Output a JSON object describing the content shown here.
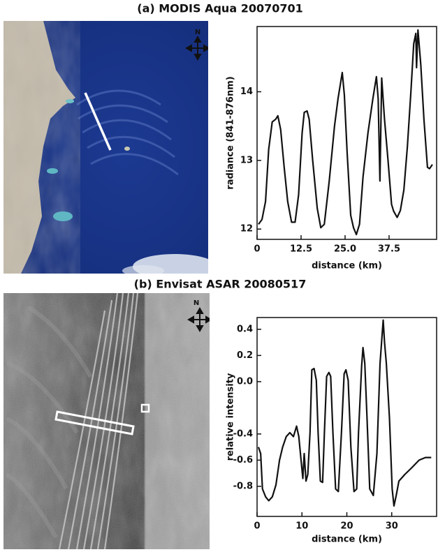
{
  "chart_data": [
    {
      "type": "line",
      "title": "(a) MODIS Aqua 20070701",
      "north_label": "N",
      "xlabel": "distance (km)",
      "ylabel": "radiance (841-876nm)",
      "xlim": [
        0,
        51
      ],
      "ylim": [
        11.85,
        14.95
      ],
      "xticks": [
        0,
        12.5,
        {
          "value": 25,
          "label": "25.0"
        },
        37.5
      ],
      "yticks": [
        12,
        13,
        14
      ],
      "series": [
        {
          "color": "#111111",
          "x": [
            0.4,
            1.4,
            2.4,
            3.3,
            4.3,
            5.3,
            5.9,
            6.7,
            7.7,
            8.7,
            9.8,
            10.8,
            11.8,
            12.8,
            13.4,
            14.2,
            14.8,
            15.8,
            17.1,
            18.1,
            19.1,
            20.5,
            22.0,
            23.0,
            24.2,
            24.8,
            25.6,
            26.6,
            27.4,
            28.2,
            29.1,
            30.1,
            31.5,
            32.9,
            33.9,
            34.4,
            34.9,
            35.4,
            36.2,
            37.2,
            38.2,
            38.8,
            39.8,
            40.7,
            41.7,
            42.7,
            43.7,
            44.5,
            45.1,
            45.3,
            45.7,
            46.5,
            47.4,
            48.4,
            49.0,
            49.8
          ],
          "values": [
            12.07,
            12.14,
            12.4,
            13.16,
            13.56,
            13.6,
            13.65,
            13.45,
            12.9,
            12.4,
            12.1,
            12.1,
            12.5,
            13.4,
            13.7,
            13.72,
            13.6,
            13.0,
            12.3,
            12.02,
            12.07,
            12.7,
            13.5,
            13.9,
            14.28,
            13.95,
            13.1,
            12.2,
            12.02,
            11.92,
            12.07,
            12.76,
            13.4,
            13.9,
            14.22,
            13.9,
            12.7,
            14.2,
            13.6,
            13.0,
            12.36,
            12.26,
            12.17,
            12.27,
            12.57,
            13.2,
            14.0,
            14.7,
            14.85,
            14.35,
            14.9,
            14.4,
            13.6,
            12.9,
            12.88,
            12.94
          ]
        }
      ]
    },
    {
      "type": "line",
      "title": "(b) Envisat ASAR 20080517",
      "north_label": "N",
      "xlabel": "distance (km)",
      "ylabel": "relative intensity",
      "xlim": [
        0,
        40
      ],
      "ylim": [
        -1.03,
        0.49
      ],
      "xticks": [
        0,
        10,
        20,
        30
      ],
      "yticks": [
        {
          "value": 0.4,
          "label": "0.4"
        },
        {
          "value": 0.2,
          "label": "0.2"
        },
        {
          "value": 0,
          "label": "0.0"
        },
        {
          "value": -0.4,
          "label": "-0.4"
        },
        {
          "value": -0.6,
          "label": "-0.6"
        },
        {
          "value": -0.8,
          "label": "-0.8"
        }
      ],
      "series": [
        {
          "color": "#111111",
          "x": [
            0.3,
            0.8,
            1.2,
            1.9,
            2.6,
            3.4,
            4.2,
            5.0,
            5.7,
            6.5,
            7.3,
            8.1,
            8.8,
            9.3,
            9.8,
            10.2,
            10.5,
            10.9,
            11.3,
            11.8,
            12.2,
            12.7,
            13.2,
            13.6,
            14.1,
            14.6,
            15.0,
            15.5,
            16.0,
            16.4,
            16.9,
            17.5,
            18.1,
            18.8,
            19.4,
            19.8,
            20.3,
            20.9,
            21.6,
            22.2,
            22.6,
            23.3,
            23.6,
            24.0,
            24.5,
            25.1,
            25.9,
            26.7,
            27.4,
            28.1,
            28.4,
            28.8,
            29.5,
            30.1,
            30.5,
            31.0,
            31.6,
            32.9,
            34.4,
            36.1,
            37.5,
            38.8
          ],
          "values": [
            -0.5,
            -0.55,
            -0.82,
            -0.88,
            -0.91,
            -0.88,
            -0.79,
            -0.6,
            -0.5,
            -0.42,
            -0.39,
            -0.42,
            -0.34,
            -0.42,
            -0.6,
            -0.74,
            -0.55,
            -0.76,
            -0.71,
            -0.39,
            0.09,
            0.1,
            0.01,
            -0.39,
            -0.76,
            -0.77,
            -0.39,
            0.04,
            0.07,
            0.04,
            -0.39,
            -0.82,
            -0.84,
            -0.39,
            0.06,
            0.09,
            0.01,
            -0.5,
            -0.84,
            -0.82,
            -0.39,
            0.12,
            0.26,
            0.14,
            -0.28,
            -0.82,
            -0.87,
            -0.55,
            0.14,
            0.47,
            0.3,
            0.14,
            -0.28,
            -0.82,
            -0.95,
            -0.87,
            -0.76,
            -0.71,
            -0.66,
            -0.6,
            -0.58,
            -0.58
          ]
        }
      ]
    }
  ]
}
